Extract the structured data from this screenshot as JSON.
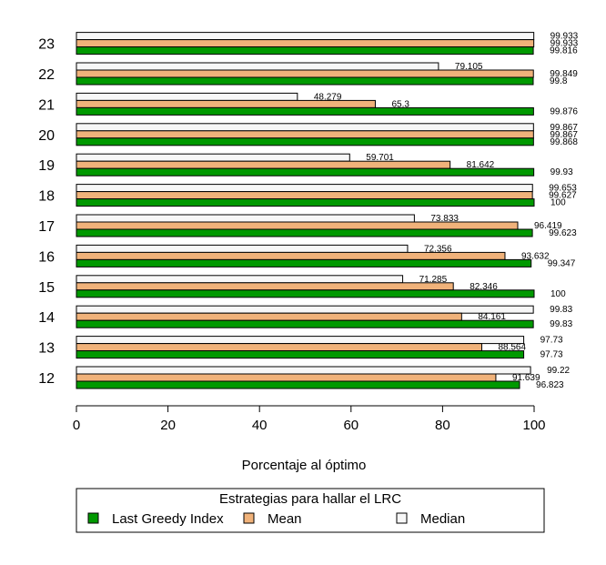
{
  "chart_data": {
    "type": "bar",
    "orientation": "horizontal",
    "title": "",
    "xlabel": "Porcentaje al óptimo",
    "ylabel": "",
    "xlim": [
      0,
      100
    ],
    "x_ticks": [
      "0",
      "20",
      "40",
      "60",
      "80",
      "100"
    ],
    "categories": [
      "12",
      "13",
      "14",
      "15",
      "16",
      "17",
      "18",
      "19",
      "20",
      "21",
      "22",
      "23"
    ],
    "series": [
      {
        "name": "Last Greedy Index",
        "color": "#009900",
        "values": [
          96.823,
          97.73,
          99.83,
          100,
          99.347,
          99.623,
          100,
          99.93,
          99.868,
          99.876,
          99.8,
          99.816
        ],
        "labels": [
          "96.823",
          "97.73",
          "99.83",
          "100",
          "99.347",
          "99.623",
          "100",
          "99.93",
          "99.868",
          "99.876",
          "99.8",
          "99.816"
        ]
      },
      {
        "name": "Mean",
        "color": "#f0b27a",
        "values": [
          91.639,
          88.564,
          84.161,
          82.346,
          93.632,
          96.419,
          99.627,
          81.642,
          99.867,
          65.3,
          99.849,
          99.933
        ],
        "labels": [
          "91.639",
          "88.564",
          "84.161",
          "82.346",
          "93.632",
          "96.419",
          "99.627",
          "81.642",
          "99.867",
          "65.3",
          "99.849",
          "99.933"
        ]
      },
      {
        "name": "Median",
        "color": "#f7f7f7",
        "values": [
          99.22,
          97.73,
          99.83,
          71.285,
          72.356,
          73.833,
          99.653,
          59.701,
          99.867,
          48.279,
          79.105,
          99.933
        ],
        "labels": [
          "99.22",
          "97.73",
          "99.83",
          "71.285",
          "72.356",
          "73.833",
          "99.653",
          "59.701",
          "99.867",
          "48.279",
          "79.105",
          "99.933"
        ]
      }
    ],
    "legend": {
      "title": "Estrategias para hallar el LRC",
      "position": "bottom",
      "items": [
        "Last Greedy Index",
        "Mean",
        "Median"
      ]
    },
    "grid": false
  }
}
